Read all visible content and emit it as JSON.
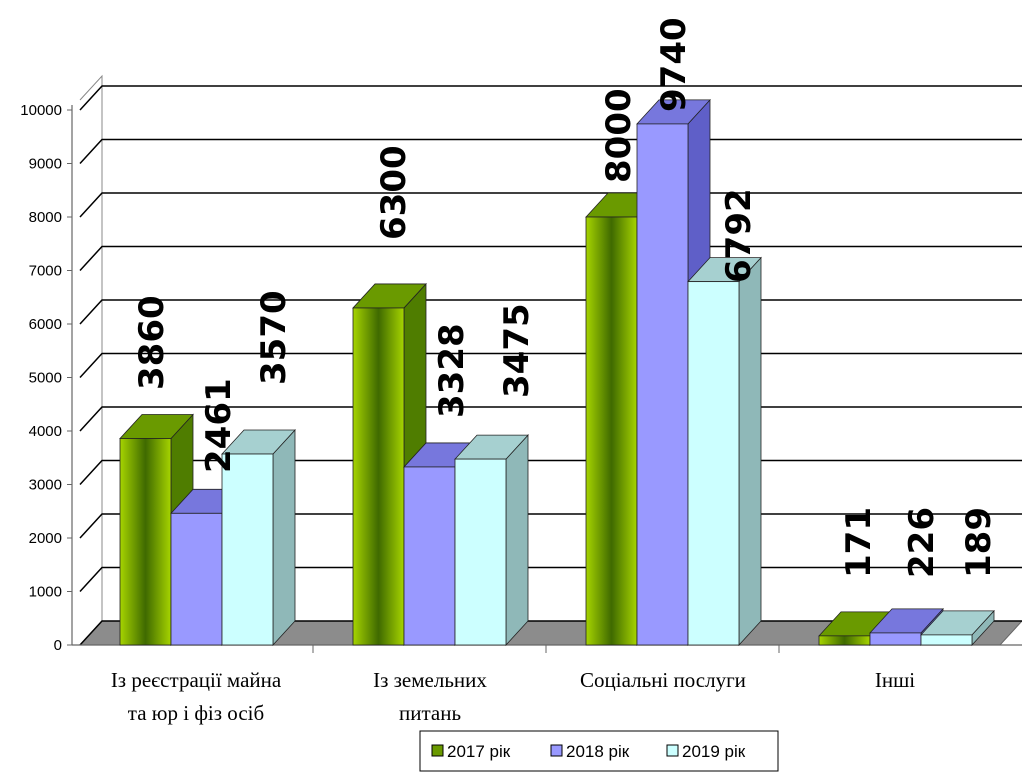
{
  "chart_data": {
    "type": "bar",
    "categories": [
      [
        "Із реєстрації майна",
        "та юр і фіз осіб"
      ],
      [
        "Із земельних",
        "питань"
      ],
      [
        "Соціальні послуги"
      ],
      [
        "Інші"
      ]
    ],
    "series": [
      {
        "name": "2017 рік",
        "values": [
          3860,
          6300,
          8000,
          171
        ],
        "labels": [
          "3860",
          "6300",
          "8000",
          "171"
        ],
        "color": "#8fbf00"
      },
      {
        "name": "2018 рік",
        "values": [
          2461,
          3328,
          9740,
          226
        ],
        "labels": [
          "2461",
          "3328",
          "9740",
          "226"
        ],
        "color": "#9999ff"
      },
      {
        "name": "2019 рік",
        "values": [
          3570,
          3475,
          6792,
          189
        ],
        "labels": [
          "3570",
          "3475",
          "6792",
          "189"
        ],
        "color": "#ccffff"
      }
    ],
    "yticks": [
      "0",
      "1000",
      "2000",
      "3000",
      "4000",
      "5000",
      "6000",
      "7000",
      "8000",
      "9000",
      "10000"
    ],
    "ylim": [
      0,
      10000
    ],
    "grid": true,
    "legend": "bottom",
    "style": "3d-clustered-column"
  }
}
